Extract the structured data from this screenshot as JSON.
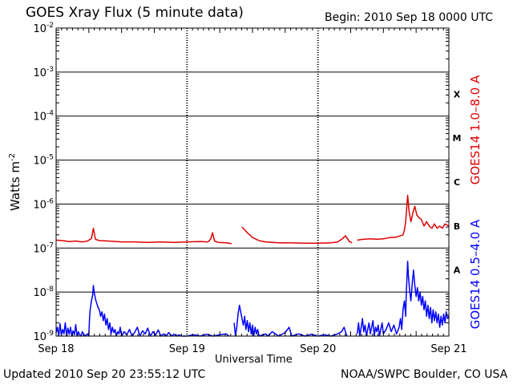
{
  "header": {
    "title": "GOES Xray Flux (5 minute data)",
    "begin_label": "Begin:  2010 Sep 18 0000 UTC"
  },
  "footer": {
    "updated": "Updated 2010 Sep 20 23:55:12 UTC",
    "credit": "NOAA/SWPC Boulder, CO USA"
  },
  "chart_data": {
    "type": "line",
    "title": "GOES Xray Flux (5 minute data)",
    "xlabel": "Universal Time",
    "ylabel_base": "Watts m",
    "ylabel_exp": "-2",
    "y_scale": "log",
    "ylim_exp": [
      -9,
      -2
    ],
    "y_ticks": [
      {
        "base": "10",
        "exp": "-2",
        "value_exp": -2
      },
      {
        "base": "10",
        "exp": "-3",
        "value_exp": -3
      },
      {
        "base": "10",
        "exp": "-4",
        "value_exp": -4
      },
      {
        "base": "10",
        "exp": "-5",
        "value_exp": -5
      },
      {
        "base": "10",
        "exp": "-6",
        "value_exp": -6
      },
      {
        "base": "10",
        "exp": "-7",
        "value_exp": -7
      },
      {
        "base": "10",
        "exp": "-8",
        "value_exp": -8
      },
      {
        "base": "10",
        "exp": "-9",
        "value_exp": -9
      }
    ],
    "x_ticks": [
      {
        "label": "Sep 18",
        "day": 0
      },
      {
        "label": "Sep 19",
        "day": 1
      },
      {
        "label": "Sep 20",
        "day": 2
      },
      {
        "label": "Sep 21",
        "day": 3
      }
    ],
    "xlim_days": [
      0,
      3
    ],
    "flare_classes": [
      {
        "label": "X",
        "value_exp": -3.5
      },
      {
        "label": "M",
        "value_exp": -4.5
      },
      {
        "label": "C",
        "value_exp": -5.5
      },
      {
        "label": "B",
        "value_exp": -6.5
      },
      {
        "label": "A",
        "value_exp": -7.5
      }
    ],
    "grid": {
      "horizontal": true,
      "vertical_dotted": true
    },
    "series": [
      {
        "name": "GOES14 1.0–8.0 A",
        "color": "#e00000",
        "points": [
          [
            0.0,
            -6.82
          ],
          [
            0.05,
            -6.83
          ],
          [
            0.1,
            -6.85
          ],
          [
            0.15,
            -6.84
          ],
          [
            0.2,
            -6.86
          ],
          [
            0.24,
            -6.84
          ],
          [
            0.27,
            -6.78
          ],
          [
            0.285,
            -6.55
          ],
          [
            0.3,
            -6.8
          ],
          [
            0.33,
            -6.83
          ],
          [
            0.4,
            -6.84
          ],
          [
            0.5,
            -6.86
          ],
          [
            0.6,
            -6.86
          ],
          [
            0.7,
            -6.87
          ],
          [
            0.8,
            -6.86
          ],
          [
            0.9,
            -6.87
          ],
          [
            1.0,
            -6.86
          ],
          [
            1.1,
            -6.85
          ],
          [
            1.16,
            -6.86
          ],
          [
            1.18,
            -6.8
          ],
          [
            1.195,
            -6.65
          ],
          [
            1.21,
            -6.84
          ],
          [
            1.24,
            -6.87
          ],
          [
            1.3,
            -6.88
          ],
          [
            1.34,
            -6.9
          ],
          [
            1.35,
            null
          ],
          [
            1.42,
            -6.52
          ],
          [
            1.46,
            -6.65
          ],
          [
            1.5,
            -6.76
          ],
          [
            1.55,
            -6.83
          ],
          [
            1.6,
            -6.86
          ],
          [
            1.7,
            -6.88
          ],
          [
            1.8,
            -6.88
          ],
          [
            1.9,
            -6.89
          ],
          [
            2.0,
            -6.89
          ],
          [
            2.1,
            -6.88
          ],
          [
            2.15,
            -6.86
          ],
          [
            2.19,
            -6.78
          ],
          [
            2.21,
            -6.72
          ],
          [
            2.24,
            -6.85
          ],
          [
            2.26,
            -6.88
          ],
          [
            2.27,
            null
          ],
          [
            2.3,
            -6.82
          ],
          [
            2.35,
            -6.8
          ],
          [
            2.4,
            -6.79
          ],
          [
            2.45,
            -6.8
          ],
          [
            2.5,
            -6.79
          ],
          [
            2.55,
            -6.76
          ],
          [
            2.6,
            -6.75
          ],
          [
            2.63,
            -6.72
          ],
          [
            2.65,
            -6.7
          ],
          [
            2.66,
            -6.6
          ],
          [
            2.67,
            -6.4
          ],
          [
            2.685,
            -5.8
          ],
          [
            2.695,
            -6.15
          ],
          [
            2.71,
            -6.4
          ],
          [
            2.725,
            -6.2
          ],
          [
            2.74,
            -6.05
          ],
          [
            2.755,
            -6.25
          ],
          [
            2.77,
            -6.3
          ],
          [
            2.79,
            -6.35
          ],
          [
            2.81,
            -6.5
          ],
          [
            2.83,
            -6.4
          ],
          [
            2.85,
            -6.5
          ],
          [
            2.87,
            -6.55
          ],
          [
            2.89,
            -6.45
          ],
          [
            2.91,
            -6.55
          ],
          [
            2.93,
            -6.5
          ],
          [
            2.95,
            -6.55
          ],
          [
            2.97,
            -6.45
          ],
          [
            3.0,
            -6.5
          ]
        ]
      },
      {
        "name": "GOES14 0.5–4.0 A",
        "color": "#0000ff",
        "points": [
          [
            0.0,
            -8.92
          ],
          [
            0.01,
            -8.8
          ],
          [
            0.02,
            -9.0
          ],
          [
            0.03,
            -8.72
          ],
          [
            0.04,
            -8.97
          ],
          [
            0.05,
            -8.85
          ],
          [
            0.06,
            -8.95
          ],
          [
            0.07,
            -8.7
          ],
          [
            0.08,
            -9.0
          ],
          [
            0.09,
            -8.82
          ],
          [
            0.1,
            -8.96
          ],
          [
            0.11,
            -8.8
          ],
          [
            0.12,
            -9.0
          ],
          [
            0.13,
            -8.88
          ],
          [
            0.14,
            -8.97
          ],
          [
            0.15,
            -8.74
          ],
          [
            0.16,
            -9.0
          ],
          [
            0.17,
            -8.9
          ],
          [
            0.18,
            -8.97
          ],
          [
            0.19,
            -9.0
          ],
          [
            0.2,
            -8.9
          ],
          [
            0.22,
            -9.0
          ],
          [
            0.24,
            -8.95
          ],
          [
            0.25,
            -9.0
          ],
          [
            0.255,
            -8.6
          ],
          [
            0.26,
            -8.4
          ],
          [
            0.27,
            -8.2
          ],
          [
            0.28,
            -8.05
          ],
          [
            0.285,
            -7.85
          ],
          [
            0.29,
            -8.0
          ],
          [
            0.3,
            -8.15
          ],
          [
            0.31,
            -8.25
          ],
          [
            0.32,
            -8.35
          ],
          [
            0.33,
            -8.4
          ],
          [
            0.34,
            -8.55
          ],
          [
            0.35,
            -8.45
          ],
          [
            0.36,
            -8.65
          ],
          [
            0.37,
            -8.5
          ],
          [
            0.38,
            -8.75
          ],
          [
            0.39,
            -8.6
          ],
          [
            0.4,
            -8.85
          ],
          [
            0.41,
            -8.7
          ],
          [
            0.42,
            -8.95
          ],
          [
            0.43,
            -8.8
          ],
          [
            0.44,
            -8.92
          ],
          [
            0.45,
            -8.85
          ],
          [
            0.46,
            -9.0
          ],
          [
            0.47,
            -8.9
          ],
          [
            0.48,
            -8.95
          ],
          [
            0.49,
            -8.8
          ],
          [
            0.5,
            -9.0
          ],
          [
            0.52,
            -8.9
          ],
          [
            0.54,
            -8.97
          ],
          [
            0.56,
            -8.85
          ],
          [
            0.58,
            -9.0
          ],
          [
            0.6,
            -8.92
          ],
          [
            0.62,
            -8.8
          ],
          [
            0.64,
            -9.0
          ],
          [
            0.66,
            -8.88
          ],
          [
            0.68,
            -8.95
          ],
          [
            0.7,
            -8.82
          ],
          [
            0.72,
            -9.0
          ],
          [
            0.74,
            -8.9
          ],
          [
            0.76,
            -8.98
          ],
          [
            0.78,
            -8.86
          ],
          [
            0.8,
            -9.0
          ],
          [
            0.82,
            -8.95
          ],
          [
            0.84,
            -9.0
          ],
          [
            0.86,
            -8.92
          ],
          [
            0.88,
            -9.0
          ],
          [
            0.9,
            -8.96
          ],
          [
            0.92,
            -9.0
          ],
          [
            0.94,
            -8.97
          ],
          [
            0.96,
            -9.0
          ],
          [
            1.0,
            -9.0
          ],
          [
            1.05,
            -8.97
          ],
          [
            1.1,
            -9.0
          ],
          [
            1.15,
            -8.96
          ],
          [
            1.2,
            -9.0
          ],
          [
            1.25,
            -8.97
          ],
          [
            1.3,
            -8.95
          ],
          [
            1.32,
            -9.0
          ],
          [
            1.33,
            null
          ],
          [
            1.36,
            -8.7
          ],
          [
            1.37,
            -9.0
          ],
          [
            1.38,
            -8.8
          ],
          [
            1.39,
            -8.5
          ],
          [
            1.4,
            -8.3
          ],
          [
            1.41,
            -8.45
          ],
          [
            1.42,
            -8.6
          ],
          [
            1.43,
            -8.75
          ],
          [
            1.44,
            -8.55
          ],
          [
            1.45,
            -8.85
          ],
          [
            1.46,
            -8.65
          ],
          [
            1.47,
            -8.9
          ],
          [
            1.48,
            -8.7
          ],
          [
            1.49,
            -8.95
          ],
          [
            1.5,
            -8.75
          ],
          [
            1.51,
            -9.0
          ],
          [
            1.52,
            -8.8
          ],
          [
            1.53,
            -8.95
          ],
          [
            1.54,
            -8.85
          ],
          [
            1.55,
            -9.0
          ],
          [
            1.6,
            -8.95
          ],
          [
            1.62,
            -9.0
          ],
          [
            1.65,
            -8.9
          ],
          [
            1.7,
            -9.0
          ],
          [
            1.75,
            -8.92
          ],
          [
            1.78,
            -8.8
          ],
          [
            1.8,
            -9.0
          ],
          [
            1.85,
            -8.95
          ],
          [
            1.9,
            -9.0
          ],
          [
            1.95,
            -8.96
          ],
          [
            2.0,
            -9.0
          ],
          [
            2.05,
            -8.97
          ],
          [
            2.1,
            -9.0
          ],
          [
            2.15,
            -8.95
          ],
          [
            2.18,
            -8.9
          ],
          [
            2.2,
            -8.8
          ],
          [
            2.22,
            -9.0
          ],
          [
            2.26,
            null
          ],
          [
            2.3,
            -8.95
          ],
          [
            2.31,
            -8.7
          ],
          [
            2.32,
            -9.0
          ],
          [
            2.33,
            -8.8
          ],
          [
            2.34,
            -8.6
          ],
          [
            2.35,
            -8.9
          ],
          [
            2.36,
            -8.75
          ],
          [
            2.37,
            -9.0
          ],
          [
            2.38,
            -8.85
          ],
          [
            2.39,
            -8.7
          ],
          [
            2.4,
            -8.95
          ],
          [
            2.41,
            -8.8
          ],
          [
            2.42,
            -8.65
          ],
          [
            2.43,
            -9.0
          ],
          [
            2.44,
            -8.8
          ],
          [
            2.45,
            -8.9
          ],
          [
            2.46,
            -8.75
          ],
          [
            2.47,
            -9.0
          ],
          [
            2.48,
            -8.85
          ],
          [
            2.49,
            -8.7
          ],
          [
            2.5,
            -8.95
          ],
          [
            2.52,
            -8.85
          ],
          [
            2.54,
            -8.7
          ],
          [
            2.56,
            -8.9
          ],
          [
            2.58,
            -8.75
          ],
          [
            2.6,
            -8.95
          ],
          [
            2.62,
            -8.8
          ],
          [
            2.63,
            -8.6
          ],
          [
            2.64,
            -8.85
          ],
          [
            2.65,
            -8.4
          ],
          [
            2.66,
            -8.2
          ],
          [
            2.67,
            -8.55
          ],
          [
            2.675,
            -8.0
          ],
          [
            2.68,
            -7.7
          ],
          [
            2.685,
            -7.3
          ],
          [
            2.69,
            -7.6
          ],
          [
            2.7,
            -7.95
          ],
          [
            2.71,
            -8.2
          ],
          [
            2.72,
            -7.8
          ],
          [
            2.73,
            -7.5
          ],
          [
            2.74,
            -7.85
          ],
          [
            2.75,
            -8.1
          ],
          [
            2.76,
            -7.9
          ],
          [
            2.77,
            -8.2
          ],
          [
            2.78,
            -8.0
          ],
          [
            2.79,
            -8.3
          ],
          [
            2.8,
            -8.1
          ],
          [
            2.81,
            -8.4
          ],
          [
            2.82,
            -8.2
          ],
          [
            2.83,
            -8.55
          ],
          [
            2.84,
            -8.3
          ],
          [
            2.85,
            -8.6
          ],
          [
            2.86,
            -8.35
          ],
          [
            2.87,
            -8.7
          ],
          [
            2.88,
            -8.4
          ],
          [
            2.89,
            -8.65
          ],
          [
            2.9,
            -8.45
          ],
          [
            2.91,
            -8.7
          ],
          [
            2.92,
            -8.5
          ],
          [
            2.93,
            -8.8
          ],
          [
            2.94,
            -8.55
          ],
          [
            2.95,
            -8.75
          ],
          [
            2.96,
            -8.5
          ],
          [
            2.97,
            -8.7
          ],
          [
            2.98,
            -8.45
          ],
          [
            2.99,
            -8.6
          ],
          [
            3.0,
            -8.55
          ]
        ]
      }
    ]
  }
}
